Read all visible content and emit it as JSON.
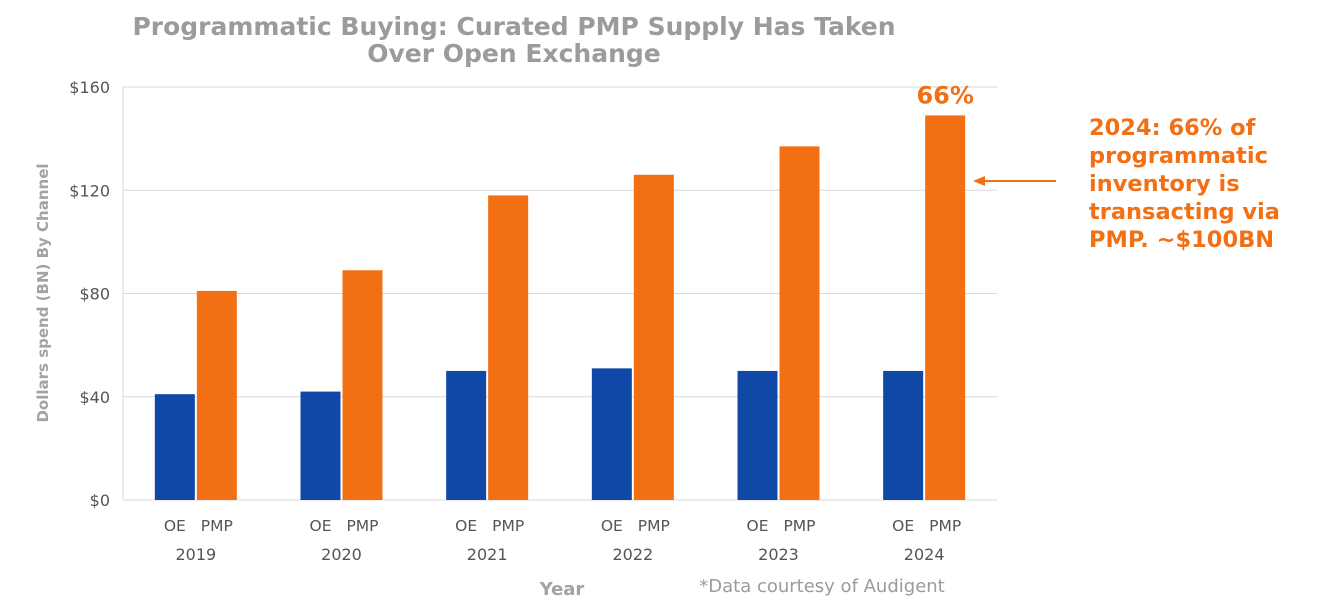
{
  "chart_data": {
    "type": "bar",
    "title": "Programmatic Buying: Curated PMP Supply Has Taken Over Open Exchange",
    "title_lines": [
      "Programmatic Buying: Curated PMP Supply Has Taken",
      "Over Open Exchange"
    ],
    "xlabel": "Year",
    "ylabel": "Dollars spend (BN) By Channel",
    "categories": [
      "2019",
      "2020",
      "2021",
      "2022",
      "2023",
      "2024"
    ],
    "bar_labels": [
      "OE",
      "PMP"
    ],
    "series": [
      {
        "name": "OE",
        "color": "#1048a8",
        "values": [
          41,
          42,
          50,
          51,
          50,
          50
        ]
      },
      {
        "name": "PMP",
        "color": "#f36f14",
        "values": [
          81,
          89,
          118,
          126,
          137,
          149
        ]
      }
    ],
    "ylim": [
      0,
      160
    ],
    "yticks": [
      0,
      40,
      80,
      120,
      160
    ],
    "ytick_labels": [
      "$0",
      "$40",
      "$80",
      "$120",
      "$160"
    ],
    "grid": true,
    "annotations": {
      "bar_label": {
        "category": "2024",
        "series": "PMP",
        "text": "66%"
      },
      "callout_lines": [
        "2024: 66% of",
        "programmatic",
        "inventory is",
        "transacting via",
        "PMP. ~$100BN"
      ]
    },
    "source_note": "*Data courtesy of Audigent"
  }
}
